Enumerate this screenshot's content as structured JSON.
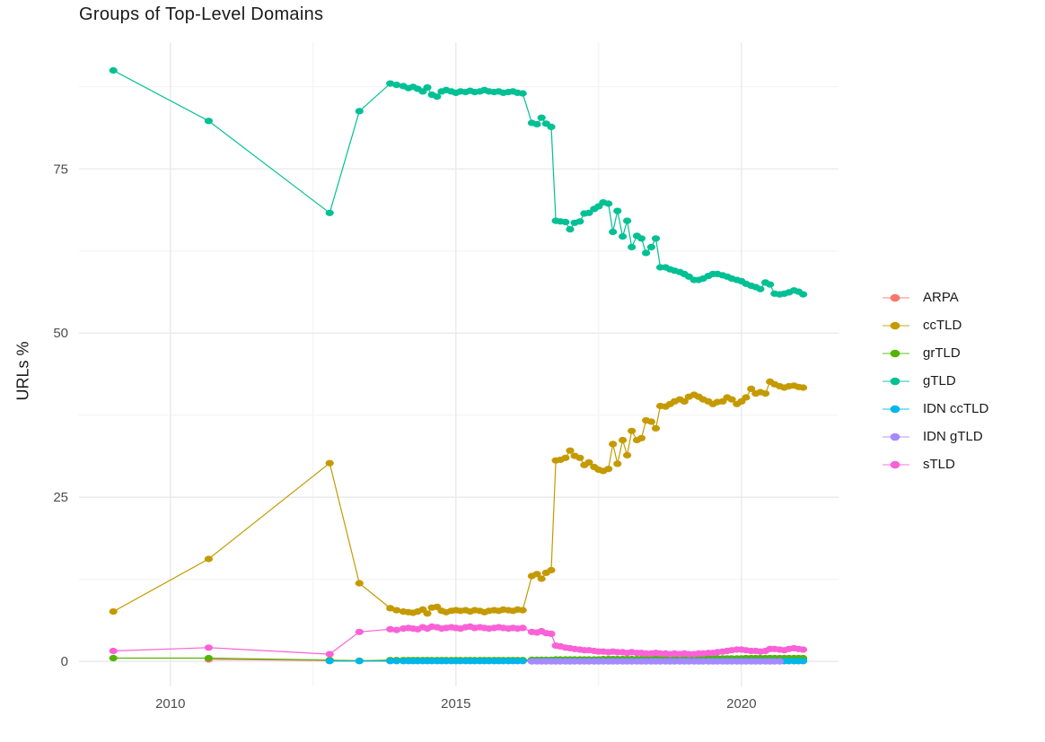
{
  "chart_data": {
    "type": "line",
    "title": "Groups of Top-Level Domains",
    "xlabel": "",
    "ylabel": "URLs %",
    "legend_position": "right",
    "grid": true,
    "x_range": [
      2008.4,
      2021.7
    ],
    "y_range": [
      -3.8,
      94.3
    ],
    "x_ticks": [
      2010,
      2015,
      2020
    ],
    "x_tick_labels": [
      "2010",
      "2015",
      "2020"
    ],
    "x_minor_ticks": [
      2012.5,
      2017.5
    ],
    "y_ticks": [
      0,
      25,
      50,
      75
    ],
    "y_tick_labels": [
      "0",
      "25",
      "50",
      "75"
    ],
    "y_minor_ticks": [
      12.5,
      37.5,
      62.5,
      87.5
    ],
    "x_all": [
      2009.0,
      2010.67,
      2012.79,
      2013.31,
      2013.85,
      2013.96,
      2014.08,
      2014.17,
      2014.25,
      2014.33,
      2014.42,
      2014.5,
      2014.58,
      2014.67,
      2014.75,
      2014.83,
      2014.92,
      2015.0,
      2015.08,
      2015.17,
      2015.25,
      2015.33,
      2015.42,
      2015.5,
      2015.58,
      2015.67,
      2015.75,
      2015.83,
      2015.92,
      2016.0,
      2016.08,
      2016.17,
      2016.33,
      2016.42,
      2016.5,
      2016.58,
      2016.67,
      2016.75,
      2016.83,
      2016.92,
      2017.0,
      2017.08,
      2017.17,
      2017.25,
      2017.33,
      2017.42,
      2017.5,
      2017.58,
      2017.67,
      2017.75,
      2017.83,
      2017.92,
      2018.0,
      2018.08,
      2018.17,
      2018.25,
      2018.33,
      2018.42,
      2018.5,
      2018.58,
      2018.67,
      2018.75,
      2018.83,
      2018.92,
      2019.0,
      2019.08,
      2019.17,
      2019.25,
      2019.33,
      2019.42,
      2019.5,
      2019.58,
      2019.67,
      2019.75,
      2019.83,
      2019.92,
      2020.0,
      2020.08,
      2020.17,
      2020.25,
      2020.33,
      2020.42,
      2020.5,
      2020.58,
      2020.67,
      2020.75,
      2020.83,
      2020.92,
      2021.0,
      2021.08
    ],
    "series": [
      {
        "name": "ARPA",
        "color": "#F8766D",
        "x_start_index": 1,
        "y": [
          0.3,
          0.15,
          0.1,
          0.1,
          0.1,
          0.1,
          0.1,
          0.1,
          0.1,
          0.1,
          0.1,
          0.1,
          0.1,
          0.1,
          0.1,
          0.1,
          0.1,
          0.1,
          0.1,
          0.1,
          0.1,
          0.1,
          0.1,
          0.1,
          0.1,
          0.1,
          0.1,
          0.1,
          0.1,
          0.1,
          0.1,
          0.05,
          0.05,
          0.05,
          0.05,
          0.05,
          0.05,
          0.05,
          0.05,
          0.05,
          0.05,
          0.05,
          0.05,
          0.05,
          0.05,
          0.05,
          0.05,
          0.05,
          0.05,
          0.05,
          0.05,
          0.05,
          0.05,
          0.05,
          0.05,
          0.05,
          0.05,
          0.05,
          0.05,
          0.05,
          0.05,
          0.05,
          0.05,
          0.05,
          0.05,
          0.05,
          0.05,
          0.05,
          0.05,
          0.05,
          0.05,
          0.05,
          0.05,
          0.05,
          0.05,
          0.05,
          0.05,
          0.05,
          0.05,
          0.05,
          0.05,
          0.05,
          0.05,
          0.05,
          0.05,
          0.05,
          0.05,
          0.05,
          0.05
        ]
      },
      {
        "name": "ccTLD",
        "color": "#C49A00",
        "x_start_index": 0,
        "y": [
          7.6,
          15.6,
          30.2,
          11.9,
          8.1,
          7.8,
          7.6,
          7.5,
          7.4,
          7.6,
          7.9,
          7.3,
          8.2,
          8.3,
          7.7,
          7.5,
          7.7,
          7.8,
          7.7,
          7.8,
          7.6,
          7.8,
          7.7,
          7.5,
          7.7,
          7.8,
          7.7,
          7.9,
          7.8,
          7.7,
          7.9,
          7.8,
          13.0,
          13.3,
          12.6,
          13.5,
          13.9,
          30.6,
          30.7,
          31.0,
          32.1,
          31.3,
          31.0,
          29.9,
          30.3,
          29.6,
          29.2,
          29.0,
          29.3,
          33.1,
          30.1,
          33.7,
          31.4,
          35.1,
          33.7,
          34.0,
          36.7,
          36.5,
          35.5,
          38.9,
          38.8,
          39.2,
          39.6,
          39.9,
          39.6,
          40.3,
          40.6,
          40.3,
          39.9,
          39.6,
          39.2,
          39.5,
          39.6,
          40.2,
          39.9,
          39.2,
          39.6,
          40.2,
          41.5,
          40.8,
          41.0,
          40.8,
          42.6,
          42.2,
          41.9,
          41.7,
          41.9,
          42.0,
          41.8,
          41.7
        ]
      },
      {
        "name": "grTLD",
        "color": "#53B400",
        "x_start_index": 0,
        "y": [
          0.5,
          0.5,
          0.2,
          0.1,
          0.2,
          0.2,
          0.2,
          0.2,
          0.2,
          0.2,
          0.2,
          0.2,
          0.2,
          0.2,
          0.2,
          0.2,
          0.2,
          0.2,
          0.2,
          0.2,
          0.2,
          0.2,
          0.2,
          0.2,
          0.2,
          0.2,
          0.2,
          0.2,
          0.2,
          0.2,
          0.2,
          0.2,
          0.25,
          0.25,
          0.25,
          0.25,
          0.25,
          0.3,
          0.3,
          0.3,
          0.3,
          0.3,
          0.3,
          0.3,
          0.3,
          0.3,
          0.3,
          0.35,
          0.35,
          0.35,
          0.35,
          0.35,
          0.35,
          0.35,
          0.35,
          0.35,
          0.35,
          0.4,
          0.4,
          0.4,
          0.4,
          0.4,
          0.4,
          0.4,
          0.4,
          0.4,
          0.4,
          0.45,
          0.45,
          0.45,
          0.45,
          0.45,
          0.45,
          0.45,
          0.45,
          0.45,
          0.45,
          0.5,
          0.5,
          0.5,
          0.5,
          0.5,
          0.5,
          0.5,
          0.5,
          0.5,
          0.5,
          0.5,
          0.5,
          0.5
        ]
      },
      {
        "name": "gTLD",
        "color": "#00C094",
        "x_start_index": 0,
        "y": [
          90.0,
          82.3,
          68.3,
          83.8,
          88.0,
          87.8,
          87.6,
          87.3,
          87.5,
          87.2,
          86.8,
          87.4,
          86.3,
          86.0,
          86.8,
          87.0,
          86.8,
          86.6,
          86.8,
          86.7,
          86.9,
          86.7,
          86.8,
          87.0,
          86.8,
          86.7,
          86.8,
          86.6,
          86.7,
          86.8,
          86.6,
          86.5,
          82.0,
          81.8,
          82.8,
          81.9,
          81.4,
          67.1,
          67.0,
          66.9,
          65.8,
          66.8,
          67.0,
          68.2,
          68.3,
          68.9,
          69.3,
          69.9,
          69.7,
          65.4,
          68.6,
          64.7,
          67.1,
          63.1,
          64.8,
          64.4,
          62.2,
          63.1,
          64.4,
          60.0,
          60.0,
          59.7,
          59.5,
          59.3,
          59.0,
          58.6,
          58.1,
          58.1,
          58.3,
          58.7,
          59.0,
          59.0,
          58.8,
          58.6,
          58.3,
          58.1,
          57.9,
          57.5,
          57.2,
          57.0,
          56.7,
          57.7,
          57.4,
          56.0,
          55.9,
          56.0,
          56.2,
          56.5,
          56.3,
          55.9
        ]
      },
      {
        "name": "IDN ccTLD",
        "color": "#00B6EB",
        "x_start_index": 2,
        "y": [
          0.05,
          0.05,
          0.05,
          0.05,
          0.05,
          0.05,
          0.05,
          0.05,
          0.05,
          0.05,
          0.05,
          0.05,
          0.05,
          0.05,
          0.05,
          0.05,
          0.05,
          0.05,
          0.05,
          0.05,
          0.05,
          0.05,
          0.05,
          0.05,
          0.05,
          0.05,
          0.05,
          0.05,
          0.05,
          0.05,
          0.05,
          0.05,
          0.05,
          0.05,
          0.05,
          0.05,
          0.05,
          0.05,
          0.05,
          0.05,
          0.05,
          0.05,
          0.05,
          0.05,
          0.05,
          0.05,
          0.05,
          0.05,
          0.05,
          0.05,
          0.05,
          0.05,
          0.05,
          0.05,
          0.05,
          0.05,
          0.05,
          0.05,
          0.05,
          0.05,
          0.05,
          0.05,
          0.05,
          0.05,
          0.05,
          0.05,
          0.05,
          0.05,
          0.05,
          0.05,
          0.05,
          0.05,
          0.05,
          0.05,
          0.05,
          0.05,
          0.05,
          0.05,
          0.05,
          0.05,
          0.05,
          0.05,
          0.05,
          0.05,
          0.05,
          0.05,
          0.05,
          0.05
        ]
      },
      {
        "name": "IDN gTLD",
        "color": "#A58AFF",
        "x_start_index": 32,
        "y": [
          0,
          0,
          0,
          0,
          0,
          0,
          0,
          0,
          0,
          0,
          0,
          0,
          0,
          0,
          0,
          0,
          0,
          0,
          0,
          0,
          0,
          0,
          0,
          0,
          0,
          0,
          0,
          0,
          0,
          0,
          0,
          0,
          0,
          0,
          0,
          0,
          0,
          0,
          0,
          0,
          0,
          0,
          0,
          0,
          0,
          0,
          0,
          0,
          0,
          0,
          0,
          0,
          0
        ]
      },
      {
        "name": "sTLD",
        "color": "#FB61D7",
        "x_start_index": 0,
        "y": [
          1.6,
          2.1,
          1.1,
          4.5,
          4.9,
          4.8,
          5.0,
          5.1,
          5.0,
          4.9,
          5.2,
          5.0,
          5.3,
          5.2,
          5.0,
          5.1,
          5.2,
          5.1,
          5.0,
          5.2,
          5.3,
          5.1,
          5.2,
          5.1,
          5.0,
          5.1,
          5.2,
          5.1,
          5.0,
          5.1,
          5.0,
          5.1,
          4.5,
          4.4,
          4.6,
          4.3,
          4.2,
          2.4,
          2.3,
          2.1,
          2.0,
          1.9,
          1.8,
          1.7,
          1.7,
          1.6,
          1.5,
          1.5,
          1.4,
          1.5,
          1.4,
          1.4,
          1.3,
          1.4,
          1.3,
          1.3,
          1.2,
          1.2,
          1.3,
          1.2,
          1.2,
          1.1,
          1.2,
          1.1,
          1.2,
          1.1,
          1.1,
          1.2,
          1.2,
          1.3,
          1.3,
          1.4,
          1.5,
          1.6,
          1.7,
          1.8,
          1.8,
          1.7,
          1.6,
          1.6,
          1.5,
          1.6,
          1.9,
          1.9,
          1.8,
          1.7,
          1.9,
          2.0,
          1.9,
          1.8
        ]
      }
    ]
  }
}
